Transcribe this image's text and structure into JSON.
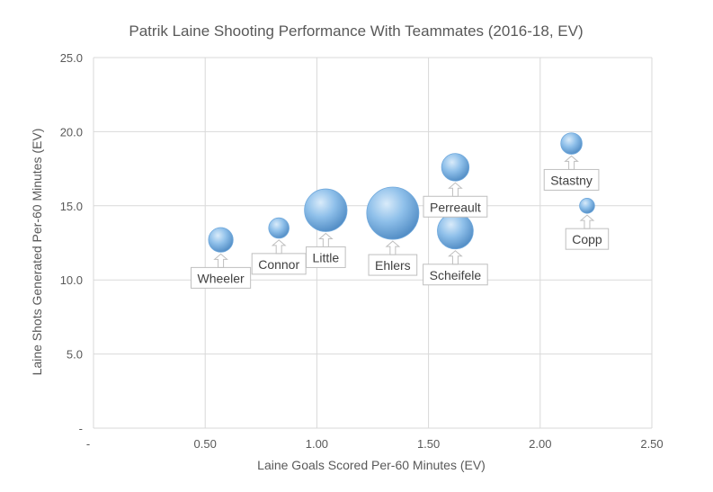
{
  "chart_data": {
    "type": "scatter",
    "title": "Patrik Laine Shooting Performance With Teammates (2016-18, EV)",
    "xlabel": "Laine Goals Scored Per-60 Minutes (EV)",
    "ylabel": "Laine Shots Generated Per-60 Minutes (EV)",
    "xlim": [
      0,
      2.5
    ],
    "ylim": [
      0,
      25
    ],
    "x_ticks": [
      {
        "value": 0,
        "label": "-"
      },
      {
        "value": 0.5,
        "label": "0.50"
      },
      {
        "value": 1.0,
        "label": "1.00"
      },
      {
        "value": 1.5,
        "label": "1.50"
      },
      {
        "value": 2.0,
        "label": "2.00"
      },
      {
        "value": 2.5,
        "label": "2.50"
      }
    ],
    "y_ticks": [
      {
        "value": 0,
        "label": "-"
      },
      {
        "value": 5,
        "label": "5.0"
      },
      {
        "value": 10,
        "label": "10.0"
      },
      {
        "value": 15,
        "label": "15.0"
      },
      {
        "value": 20,
        "label": "20.0"
      },
      {
        "value": 25,
        "label": "25.0"
      }
    ],
    "grid": true,
    "bubble_color": "#6fa8dc",
    "points": [
      {
        "label": "Wheeler",
        "x": 0.57,
        "y": 12.7,
        "size": 0.8
      },
      {
        "label": "Connor",
        "x": 0.83,
        "y": 13.5,
        "size": 0.55
      },
      {
        "label": "Little",
        "x": 1.04,
        "y": 14.7,
        "size": 2.4
      },
      {
        "label": "Ehlers",
        "x": 1.34,
        "y": 14.5,
        "size": 3.6
      },
      {
        "label": "Perreault",
        "x": 1.62,
        "y": 17.6,
        "size": 1.0
      },
      {
        "label": "Scheifele",
        "x": 1.62,
        "y": 13.3,
        "size": 1.7
      },
      {
        "label": "Stastny",
        "x": 2.14,
        "y": 19.2,
        "size": 0.6
      },
      {
        "label": "Copp",
        "x": 2.21,
        "y": 15.0,
        "size": 0.3
      }
    ]
  }
}
